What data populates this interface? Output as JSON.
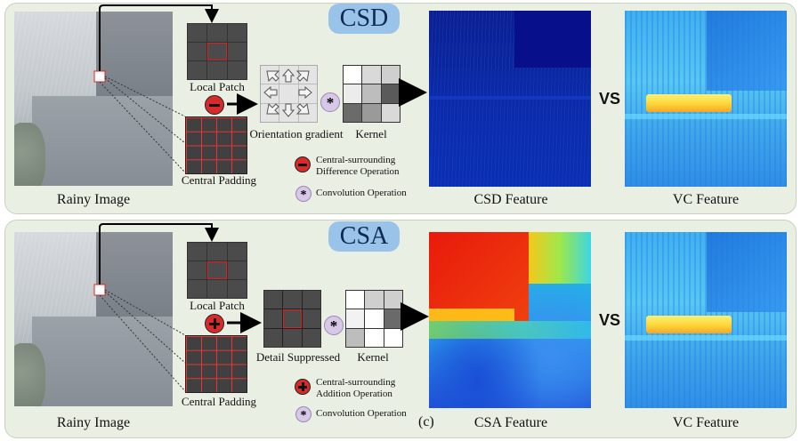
{
  "panels": [
    {
      "title": "CSD",
      "rainy_label": "Rainy Image",
      "local_patch_label": "Local Patch",
      "central_padding_label": "Central Padding",
      "mid_label": "Orientation gradient",
      "kernel_label": "Kernel",
      "legend_op_line1": "Central-surrounding",
      "legend_op_line2": "Difference Operation",
      "legend_conv": "Convolution Operation",
      "feature_label": "CSD Feature",
      "vs_label": "VS",
      "vc_label": "VC Feature",
      "op_symbol": "−",
      "op_color": "#e02020",
      "kernel_cells": [
        "#ffffff",
        "#d9d9d9",
        "#cfcfcf",
        "#ececec",
        "#bdbdbd",
        "#5a5a5a",
        "#6b6b6b",
        "#9a9a9a",
        "#d9d9d9"
      ]
    },
    {
      "title": "CSA",
      "rainy_label": "Rainy Image",
      "local_patch_label": "Local Patch",
      "central_padding_label": "Central Padding",
      "mid_label": "Detail Suppressed",
      "kernel_label": "Kernel",
      "legend_op_line1": "Central-surrounding",
      "legend_op_line2": "Addition Operation",
      "legend_conv": "Convolution Operation",
      "feature_label": "CSA Feature",
      "vs_label": "VS",
      "vc_label": "VC Feature",
      "op_symbol": "+",
      "op_color": "#d01818",
      "kernel_cells": [
        "#ffffff",
        "#cfcfcf",
        "#cfcfcf",
        "#f2f2f2",
        "#ffffff",
        "#6a6a6a",
        "#bdbdbd",
        "#ffffff",
        "#ffffff"
      ]
    }
  ],
  "subfigure_label": "(c)",
  "conv_symbol": "*",
  "conv_color": "#d8c8e8"
}
